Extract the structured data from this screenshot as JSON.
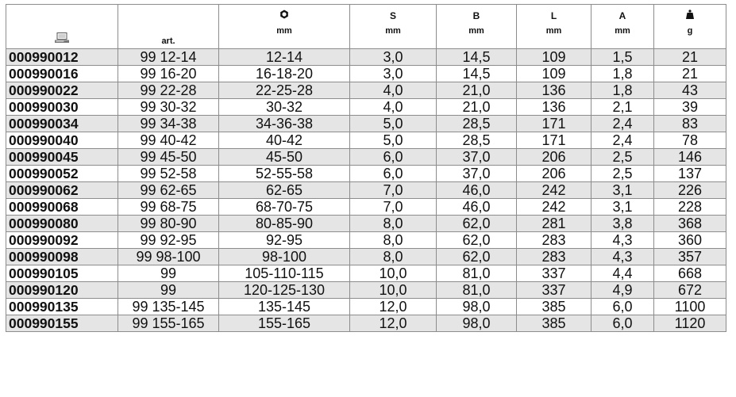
{
  "table": {
    "headers": [
      {
        "symbol": "",
        "unit": "",
        "icon": "computer-icon"
      },
      {
        "symbol": "",
        "unit": "art."
      },
      {
        "symbol": "",
        "unit": "mm",
        "icon": "nut-icon"
      },
      {
        "symbol": "S",
        "unit": "mm"
      },
      {
        "symbol": "B",
        "unit": "mm"
      },
      {
        "symbol": "L",
        "unit": "mm"
      },
      {
        "symbol": "A",
        "unit": "mm"
      },
      {
        "symbol": "",
        "unit": "g",
        "icon": "weight-icon"
      }
    ],
    "rows": [
      [
        "000990012",
        "99 12-14",
        "12-14",
        "3,0",
        "14,5",
        "109",
        "1,5",
        "21"
      ],
      [
        "000990016",
        "99 16-20",
        "16-18-20",
        "3,0",
        "14,5",
        "109",
        "1,8",
        "21"
      ],
      [
        "000990022",
        "99 22-28",
        "22-25-28",
        "4,0",
        "21,0",
        "136",
        "1,8",
        "43"
      ],
      [
        "000990030",
        "99 30-32",
        "30-32",
        "4,0",
        "21,0",
        "136",
        "2,1",
        "39"
      ],
      [
        "000990034",
        "99 34-38",
        "34-36-38",
        "5,0",
        "28,5",
        "171",
        "2,4",
        "83"
      ],
      [
        "000990040",
        "99 40-42",
        "40-42",
        "5,0",
        "28,5",
        "171",
        "2,4",
        "78"
      ],
      [
        "000990045",
        "99 45-50",
        "45-50",
        "6,0",
        "37,0",
        "206",
        "2,5",
        "146"
      ],
      [
        "000990052",
        "99 52-58",
        "52-55-58",
        "6,0",
        "37,0",
        "206",
        "2,5",
        "137"
      ],
      [
        "000990062",
        "99 62-65",
        "62-65",
        "7,0",
        "46,0",
        "242",
        "3,1",
        "226"
      ],
      [
        "000990068",
        "99 68-75",
        "68-70-75",
        "7,0",
        "46,0",
        "242",
        "3,1",
        "228"
      ],
      [
        "000990080",
        "99 80-90",
        "80-85-90",
        "8,0",
        "62,0",
        "281",
        "3,8",
        "368"
      ],
      [
        "000990092",
        "99 92-95",
        "92-95",
        "8,0",
        "62,0",
        "283",
        "4,3",
        "360"
      ],
      [
        "000990098",
        "99 98-100",
        "98-100",
        "8,0",
        "62,0",
        "283",
        "4,3",
        "357"
      ],
      [
        "000990105",
        "99",
        "105-110-115",
        "10,0",
        "81,0",
        "337",
        "4,4",
        "668"
      ],
      [
        "000990120",
        "99",
        "120-125-130",
        "10,0",
        "81,0",
        "337",
        "4,9",
        "672"
      ],
      [
        "000990135",
        "99 135-145",
        "135-145",
        "12,0",
        "98,0",
        "385",
        "6,0",
        "1100"
      ],
      [
        "000990155",
        "99 155-165",
        "155-165",
        "12,0",
        "98,0",
        "385",
        "6,0",
        "1120"
      ]
    ]
  }
}
